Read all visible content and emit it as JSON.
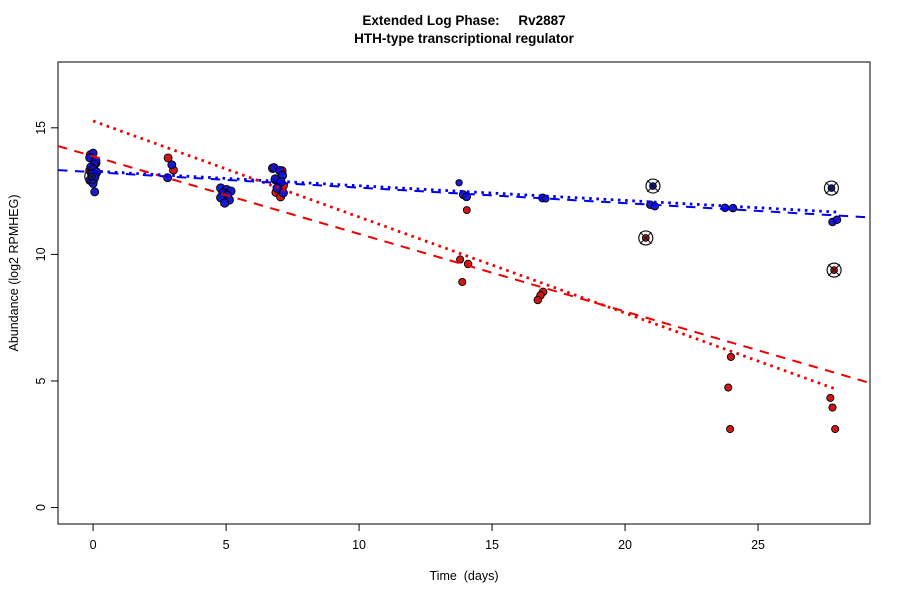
{
  "title": {
    "line1": "Extended Log Phase:     Rv2887",
    "line2": "HTH-type transcriptional regulator"
  },
  "chart_data": {
    "type": "scatter",
    "title": "Extended Log Phase: Rv2887 — HTH-type transcriptional regulator",
    "xlabel": "Time  (days)",
    "ylabel": "Abundance  (log2 RPMHEG)",
    "x_ticks": [
      0,
      5,
      10,
      15,
      20,
      25
    ],
    "y_ticks": [
      0,
      5,
      10,
      15
    ],
    "xlim": [
      -1.32,
      29.21
    ],
    "ylim": [
      -0.65,
      17.6
    ],
    "grid": false,
    "legend": "none",
    "colors": {
      "red_point": "#CC1111",
      "blue_point": "#1414CC",
      "red_line": "#EE0000",
      "blue_line": "#0000EE",
      "marker_flag": "#111111",
      "axis": "#000000"
    },
    "series": [
      {
        "name": "red-points",
        "marker": "dot",
        "color": "#CC1111",
        "points": [
          [
            -0.1,
            13.93,
            4.2
          ],
          [
            0.1,
            13.6,
            4.2
          ],
          [
            0.0,
            13.42,
            4.2
          ],
          [
            0.12,
            13.22,
            4.2
          ],
          [
            -0.12,
            13.32,
            4.2
          ],
          [
            2.82,
            13.81,
            4.0
          ],
          [
            3.02,
            13.33,
            4.0
          ],
          [
            6.75,
            13.4,
            4.2
          ],
          [
            7.1,
            13.3,
            4.2
          ],
          [
            6.85,
            12.95,
            4.2
          ],
          [
            7.15,
            12.72,
            4.2
          ],
          [
            6.88,
            12.45,
            4.2
          ],
          [
            7.05,
            12.28,
            4.2
          ],
          [
            14.05,
            11.75,
            3.5
          ],
          [
            13.8,
            9.8,
            3.6
          ],
          [
            14.1,
            9.62,
            3.8
          ],
          [
            13.88,
            8.91,
            3.6
          ],
          [
            16.92,
            8.52,
            3.8
          ],
          [
            16.82,
            8.38,
            3.8
          ],
          [
            16.72,
            8.2,
            3.8
          ],
          [
            23.98,
            5.95,
            3.6
          ],
          [
            23.88,
            4.74,
            3.6
          ],
          [
            23.95,
            3.1,
            3.6
          ],
          [
            27.72,
            4.33,
            3.6
          ],
          [
            27.8,
            3.95,
            3.6
          ],
          [
            27.9,
            3.1,
            3.6
          ]
        ]
      },
      {
        "name": "red-points-flagged",
        "marker": "circle-x",
        "color": "#CC1111",
        "points": [
          [
            20.78,
            10.65,
            3.4
          ],
          [
            27.86,
            9.38,
            3.4
          ]
        ]
      },
      {
        "name": "blue-points",
        "marker": "dot",
        "color": "#1414CC",
        "points": [
          [
            0.0,
            14.0,
            4.0
          ],
          [
            -0.12,
            13.82,
            4.2
          ],
          [
            0.1,
            13.7,
            4.2
          ],
          [
            0.04,
            13.56,
            4.2
          ],
          [
            -0.08,
            13.45,
            4.2
          ],
          [
            0.0,
            13.36,
            4.2
          ],
          [
            0.12,
            13.26,
            4.2
          ],
          [
            -0.05,
            13.15,
            4.2
          ],
          [
            0.05,
            13.05,
            4.2
          ],
          [
            -0.12,
            12.93,
            4.2
          ],
          [
            0.0,
            12.8,
            4.0
          ],
          [
            0.06,
            12.47,
            4.0
          ],
          [
            2.96,
            13.54,
            4.0
          ],
          [
            2.8,
            13.03,
            4.0
          ],
          [
            4.8,
            12.62,
            4.2
          ],
          [
            5.02,
            12.56,
            4.2
          ],
          [
            5.18,
            12.5,
            4.2
          ],
          [
            4.88,
            12.42,
            4.2
          ],
          [
            5.05,
            12.33,
            4.2
          ],
          [
            4.8,
            12.24,
            4.2
          ],
          [
            5.12,
            12.15,
            4.2
          ],
          [
            4.95,
            12.03,
            4.2
          ],
          [
            6.8,
            13.42,
            4.2
          ],
          [
            7.02,
            13.31,
            4.2
          ],
          [
            7.12,
            13.12,
            4.2
          ],
          [
            6.85,
            12.98,
            4.2
          ],
          [
            7.06,
            12.86,
            4.2
          ],
          [
            6.92,
            12.62,
            4.2
          ],
          [
            7.15,
            12.43,
            4.2
          ],
          [
            13.76,
            12.83,
            3.2
          ],
          [
            13.92,
            12.36,
            4.0
          ],
          [
            14.04,
            12.28,
            4.0
          ],
          [
            16.9,
            12.23,
            4.0
          ],
          [
            17.02,
            12.2,
            3.4
          ],
          [
            20.95,
            11.96,
            3.8
          ],
          [
            21.12,
            11.9,
            3.8
          ],
          [
            23.76,
            11.84,
            3.8
          ],
          [
            24.06,
            11.83,
            3.8
          ],
          [
            27.8,
            11.28,
            3.8
          ],
          [
            27.97,
            11.37,
            3.8
          ]
        ]
      },
      {
        "name": "blue-points-flagged",
        "marker": "circle-x",
        "color": "#1414CC",
        "points": [
          [
            21.05,
            12.7,
            3.4
          ],
          [
            27.76,
            12.62,
            3.4
          ]
        ]
      },
      {
        "name": "hidden-flag-day0",
        "marker": "circle-x",
        "color": "#1414CC",
        "points": [
          [
            -0.05,
            13.08,
            3.4
          ]
        ]
      }
    ],
    "trend_lines": [
      {
        "name": "red-dashed-fit",
        "color": "#EE0000",
        "style": "dashed",
        "width": 2,
        "x": [
          -1.32,
          29.21
        ],
        "y": [
          14.28,
          4.92
        ]
      },
      {
        "name": "red-dotted-fit",
        "color": "#EE0000",
        "style": "dotted",
        "width": 2.8,
        "x": [
          0,
          28
        ],
        "y": [
          15.27,
          4.65
        ]
      },
      {
        "name": "blue-dashed-fit",
        "color": "#0000EE",
        "style": "dashed",
        "width": 2,
        "x": [
          -1.32,
          29.21
        ],
        "y": [
          13.33,
          11.46
        ]
      },
      {
        "name": "blue-dotted-fit",
        "color": "#0000EE",
        "style": "dotted",
        "width": 2.8,
        "x": [
          0,
          28
        ],
        "y": [
          13.29,
          11.67
        ]
      }
    ]
  }
}
